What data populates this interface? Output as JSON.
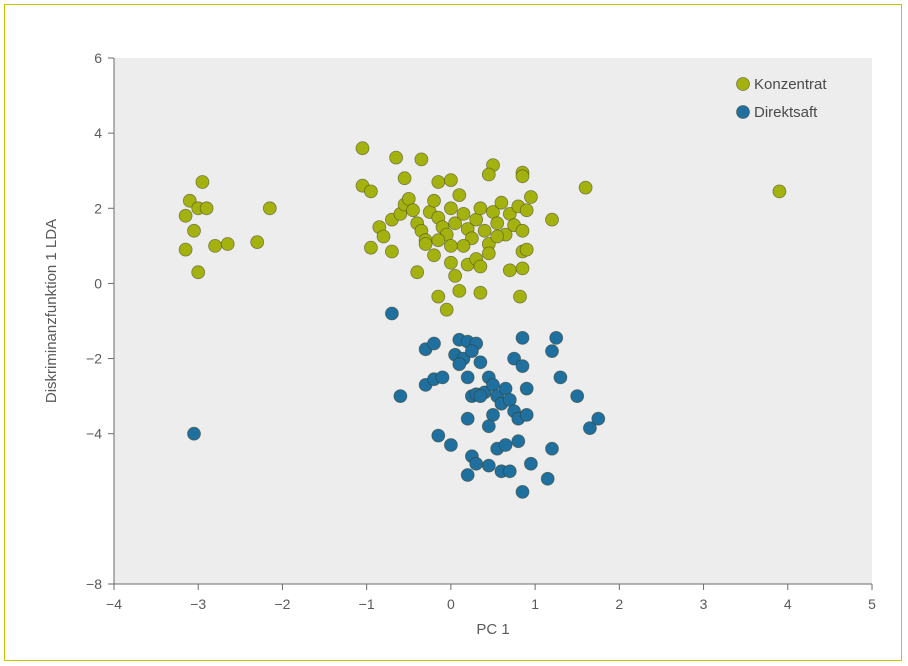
{
  "chart_data": {
    "type": "scatter",
    "title": "",
    "xlabel": "PC 1",
    "ylabel": "Diskriminanzfunktion 1 LDA",
    "xlim": [
      -4,
      5
    ],
    "ylim": [
      -8,
      6
    ],
    "xticks": [
      -4,
      -3,
      -2,
      -1,
      0,
      1,
      2,
      3,
      4,
      5
    ],
    "yticks": [
      6,
      4,
      2,
      0,
      -2,
      -4,
      -8
    ],
    "xtick_labels": [
      "−4",
      "−3",
      "−2",
      "−1",
      "0",
      "1",
      "2",
      "3",
      "4",
      "5"
    ],
    "ytick_labels": [
      "6",
      "4",
      "2",
      "0",
      "−2",
      "−4",
      "−8"
    ],
    "grid": false,
    "legend_position": "top-right",
    "background": "#ededed",
    "series": [
      {
        "name": "Konzentrat",
        "color": "#a4b20f",
        "points": [
          [
            -3.1,
            2.2
          ],
          [
            -2.95,
            2.7
          ],
          [
            -3.0,
            2.0
          ],
          [
            -2.9,
            2.0
          ],
          [
            -3.15,
            1.8
          ],
          [
            -3.05,
            1.4
          ],
          [
            -3.15,
            0.9
          ],
          [
            -2.8,
            1.0
          ],
          [
            -2.65,
            1.05
          ],
          [
            -3.0,
            0.3
          ],
          [
            -2.15,
            2.0
          ],
          [
            -2.3,
            1.1
          ],
          [
            -1.05,
            3.6
          ],
          [
            -0.65,
            3.35
          ],
          [
            -0.35,
            3.3
          ],
          [
            -1.05,
            2.6
          ],
          [
            -0.95,
            2.45
          ],
          [
            -0.55,
            2.8
          ],
          [
            -0.15,
            2.7
          ],
          [
            0.0,
            2.75
          ],
          [
            0.5,
            3.15
          ],
          [
            0.45,
            2.9
          ],
          [
            0.85,
            2.95
          ],
          [
            0.85,
            2.85
          ],
          [
            1.6,
            2.55
          ],
          [
            3.9,
            2.45
          ],
          [
            -0.85,
            1.5
          ],
          [
            -0.8,
            1.25
          ],
          [
            -0.7,
            1.7
          ],
          [
            -0.6,
            1.85
          ],
          [
            -0.55,
            2.1
          ],
          [
            -0.5,
            2.25
          ],
          [
            -0.45,
            1.95
          ],
          [
            -0.4,
            1.6
          ],
          [
            -0.35,
            1.4
          ],
          [
            -0.3,
            1.15
          ],
          [
            -0.25,
            1.9
          ],
          [
            -0.2,
            2.2
          ],
          [
            -0.15,
            1.75
          ],
          [
            -0.1,
            1.5
          ],
          [
            -0.05,
            1.3
          ],
          [
            0.0,
            2.0
          ],
          [
            0.05,
            1.6
          ],
          [
            0.1,
            2.35
          ],
          [
            0.15,
            1.85
          ],
          [
            0.2,
            1.45
          ],
          [
            0.25,
            1.2
          ],
          [
            0.3,
            1.7
          ],
          [
            0.35,
            2.0
          ],
          [
            0.4,
            1.4
          ],
          [
            0.45,
            1.05
          ],
          [
            0.5,
            1.9
          ],
          [
            0.55,
            1.6
          ],
          [
            0.6,
            2.15
          ],
          [
            0.65,
            1.3
          ],
          [
            0.7,
            1.85
          ],
          [
            0.75,
            1.55
          ],
          [
            0.8,
            2.05
          ],
          [
            0.85,
            1.4
          ],
          [
            0.9,
            1.95
          ],
          [
            0.95,
            2.3
          ],
          [
            0.85,
            0.85
          ],
          [
            0.9,
            0.9
          ],
          [
            1.2,
            1.7
          ],
          [
            -0.95,
            0.95
          ],
          [
            -0.7,
            0.85
          ],
          [
            -0.4,
            0.3
          ],
          [
            -0.2,
            0.75
          ],
          [
            0.0,
            0.55
          ],
          [
            0.05,
            0.2
          ],
          [
            0.2,
            0.5
          ],
          [
            0.3,
            0.65
          ],
          [
            0.35,
            0.45
          ],
          [
            0.45,
            0.8
          ],
          [
            0.7,
            0.35
          ],
          [
            0.85,
            0.4
          ],
          [
            0.1,
            -0.2
          ],
          [
            -0.15,
            -0.35
          ],
          [
            0.35,
            -0.25
          ],
          [
            -0.05,
            -0.7
          ],
          [
            0.82,
            -0.35
          ],
          [
            -0.3,
            1.05
          ],
          [
            0.15,
            1.0
          ],
          [
            0.55,
            1.25
          ],
          [
            -0.15,
            1.15
          ],
          [
            0.0,
            1.0
          ]
        ]
      },
      {
        "name": "Direktsaft",
        "color": "#1f6f9f",
        "points": [
          [
            -3.05,
            -4.0
          ],
          [
            -0.7,
            -0.8
          ],
          [
            -0.6,
            -3.0
          ],
          [
            0.1,
            -1.5
          ],
          [
            0.2,
            -1.55
          ],
          [
            0.3,
            -1.6
          ],
          [
            0.85,
            -1.45
          ],
          [
            -0.3,
            -1.75
          ],
          [
            -0.2,
            -1.6
          ],
          [
            0.05,
            -1.9
          ],
          [
            0.15,
            -2.0
          ],
          [
            0.25,
            -1.8
          ],
          [
            0.35,
            -2.1
          ],
          [
            0.75,
            -2.0
          ],
          [
            0.85,
            -2.2
          ],
          [
            1.25,
            -1.45
          ],
          [
            1.2,
            -1.8
          ],
          [
            1.3,
            -2.5
          ],
          [
            1.5,
            -3.0
          ],
          [
            -0.3,
            -2.7
          ],
          [
            -0.2,
            -2.55
          ],
          [
            -0.1,
            -2.5
          ],
          [
            0.1,
            -2.15
          ],
          [
            0.2,
            -2.5
          ],
          [
            0.25,
            -3.0
          ],
          [
            0.3,
            -2.95
          ],
          [
            0.4,
            -2.9
          ],
          [
            0.45,
            -2.5
          ],
          [
            0.5,
            -2.7
          ],
          [
            0.55,
            -3.0
          ],
          [
            0.6,
            -3.2
          ],
          [
            0.65,
            -2.8
          ],
          [
            0.7,
            -3.1
          ],
          [
            0.75,
            -3.4
          ],
          [
            0.8,
            -3.6
          ],
          [
            0.9,
            -2.8
          ],
          [
            0.9,
            -3.5
          ],
          [
            0.5,
            -3.5
          ],
          [
            0.35,
            -3.0
          ],
          [
            0.2,
            -3.6
          ],
          [
            -0.15,
            -4.05
          ],
          [
            0.0,
            -4.3
          ],
          [
            0.25,
            -4.6
          ],
          [
            0.45,
            -3.8
          ],
          [
            0.55,
            -4.4
          ],
          [
            0.65,
            -4.3
          ],
          [
            0.8,
            -4.2
          ],
          [
            0.3,
            -4.8
          ],
          [
            0.45,
            -4.85
          ],
          [
            0.6,
            -5.0
          ],
          [
            0.7,
            -5.0
          ],
          [
            0.95,
            -4.8
          ],
          [
            0.2,
            -5.1
          ],
          [
            1.15,
            -5.2
          ],
          [
            0.85,
            -5.55
          ],
          [
            1.2,
            -4.4
          ],
          [
            1.65,
            -3.85
          ],
          [
            1.75,
            -3.6
          ]
        ]
      }
    ]
  }
}
